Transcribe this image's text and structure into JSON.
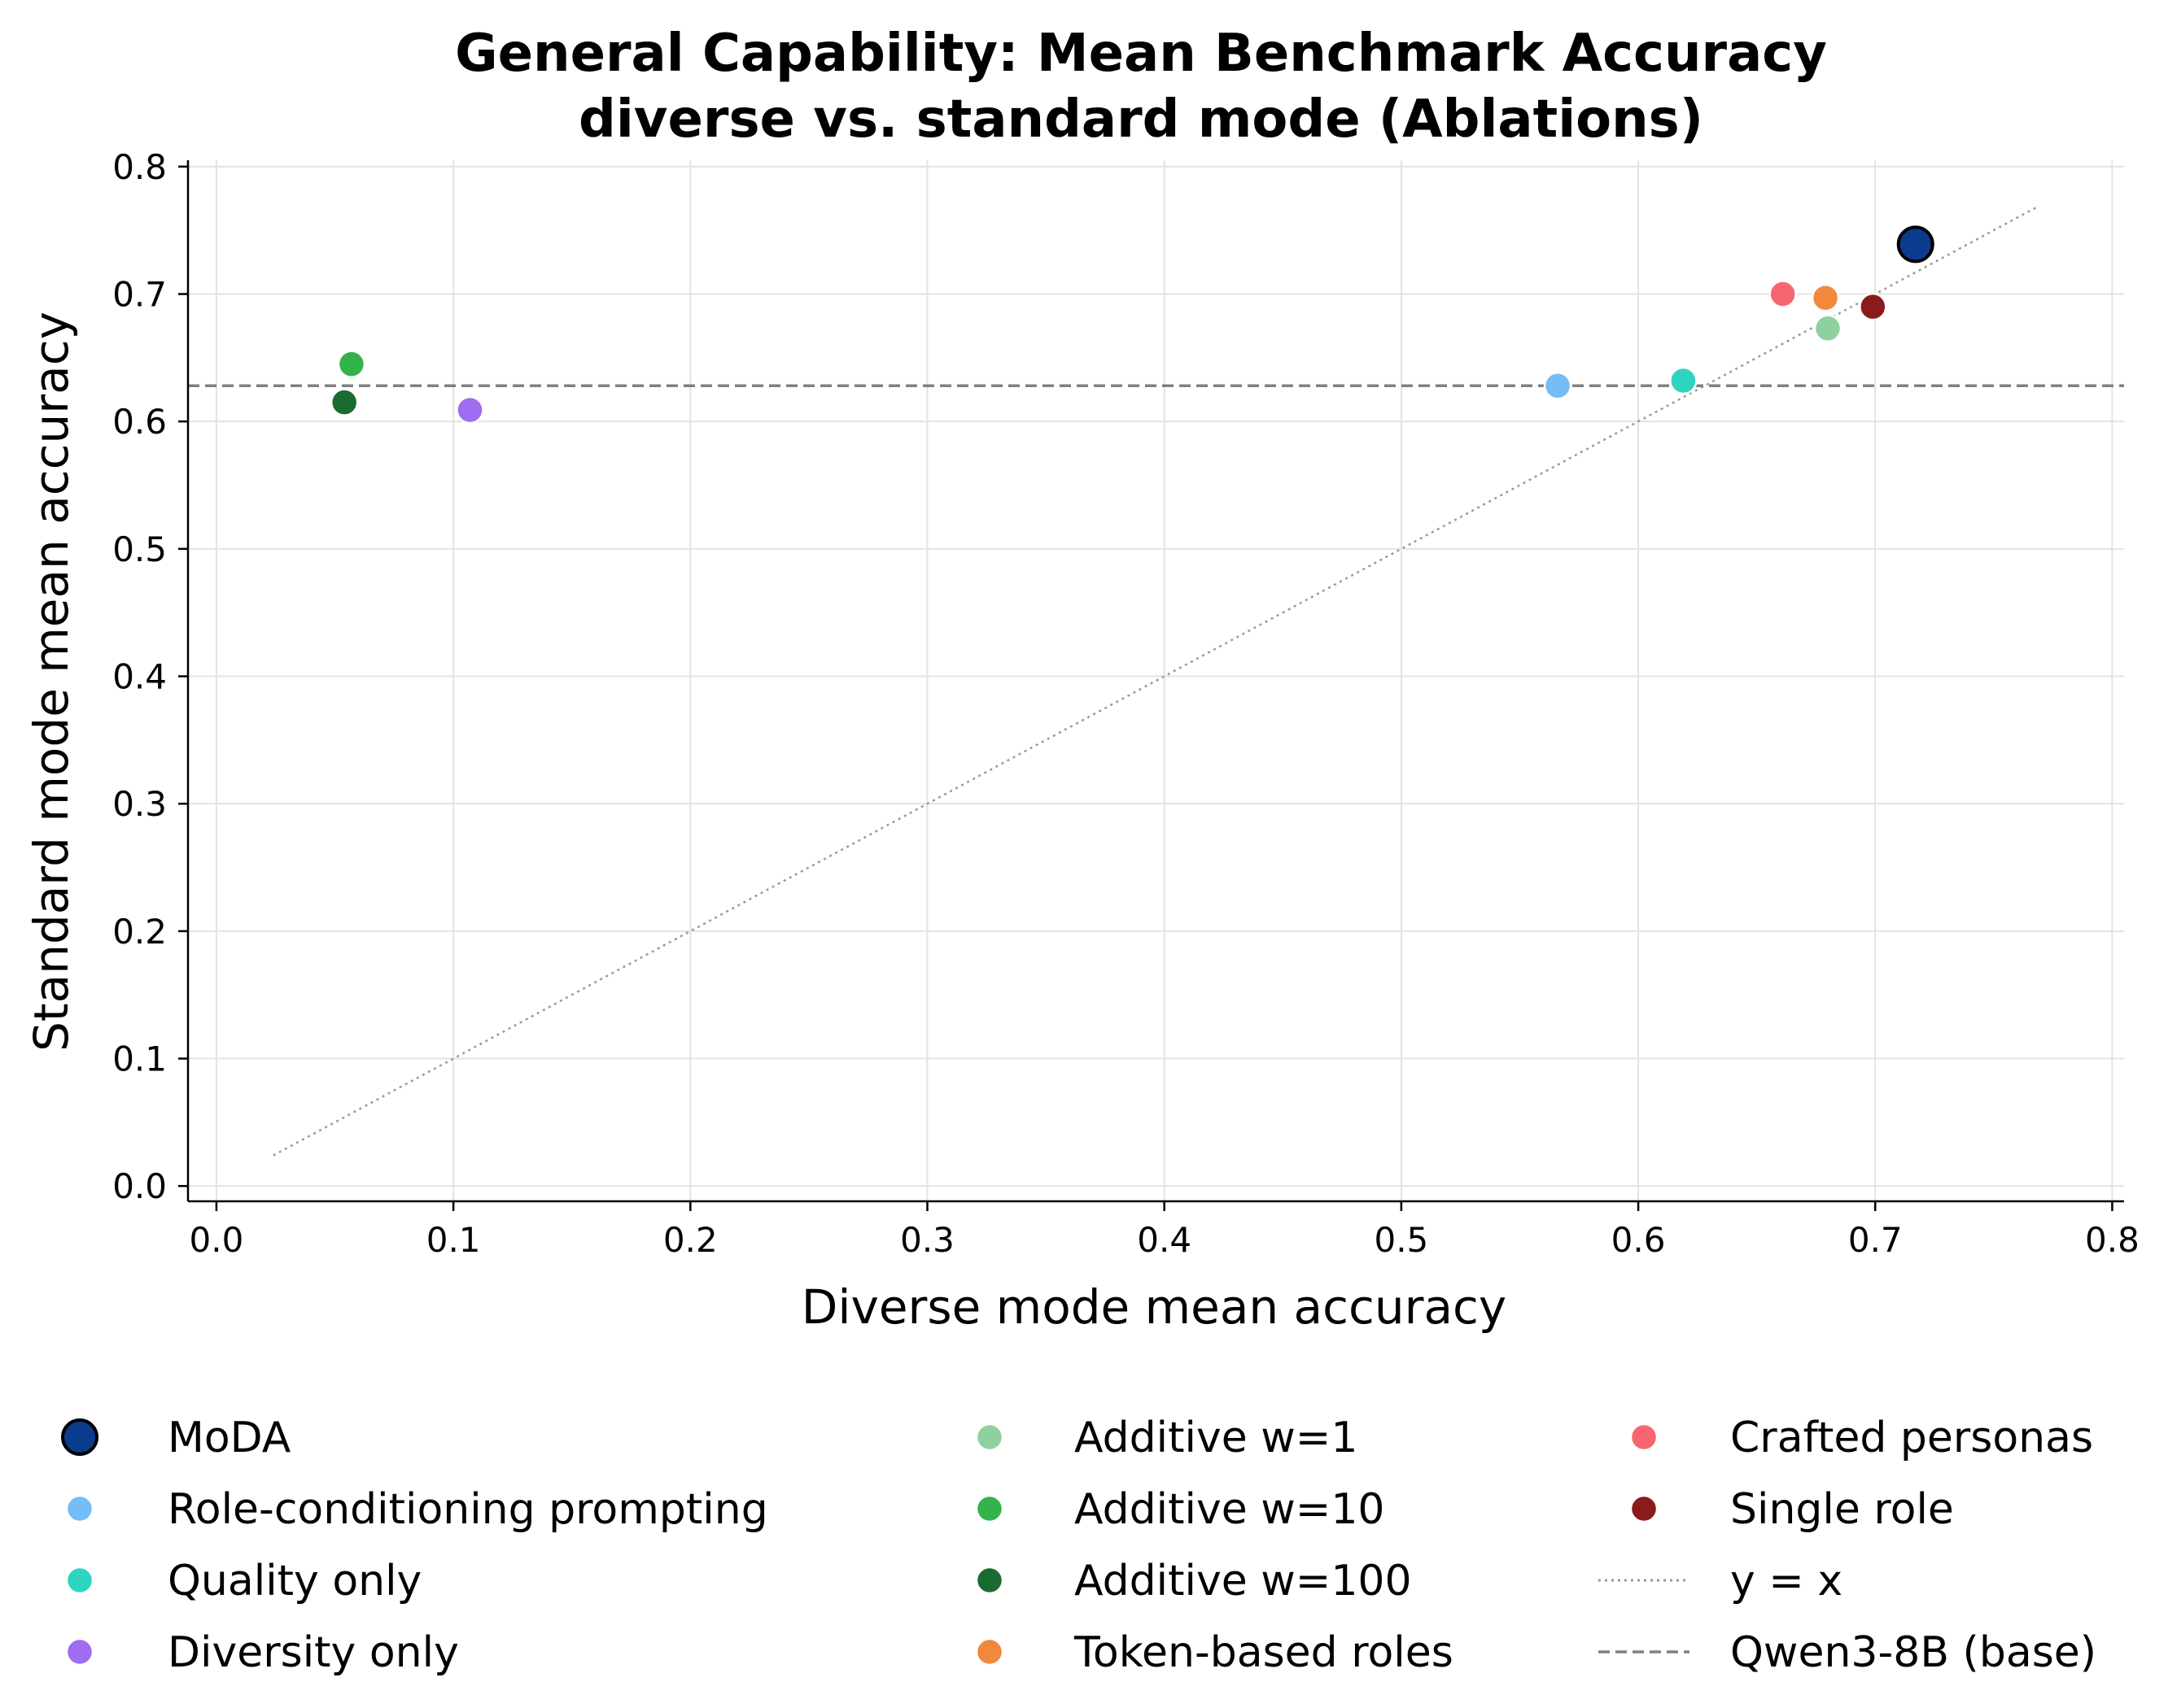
{
  "chart_data": {
    "type": "scatter",
    "title_line1": "General Capability: Mean Benchmark Accuracy",
    "title_line2": "diverse vs. standard mode (Ablations)",
    "xlabel": "Diverse mode mean accuracy",
    "ylabel": "Standard mode mean accuracy",
    "xlim": [
      -0.012,
      0.805
    ],
    "ylim": [
      -0.012,
      0.805
    ],
    "xticks": [
      "0.0",
      "0.1",
      "0.2",
      "0.3",
      "0.4",
      "0.5",
      "0.6",
      "0.7",
      "0.8"
    ],
    "yticks": [
      "0.0",
      "0.1",
      "0.2",
      "0.3",
      "0.4",
      "0.5",
      "0.6",
      "0.7",
      "0.8"
    ],
    "grid": true,
    "legend_position": "below-plot",
    "series": [
      {
        "name": "MoDA",
        "x": 0.717,
        "y": 0.739,
        "color": "#0b3b8c",
        "highlight": true
      },
      {
        "name": "Role-conditioning prompting",
        "x": 0.566,
        "y": 0.628,
        "color": "#74bdf6"
      },
      {
        "name": "Quality only",
        "x": 0.619,
        "y": 0.632,
        "color": "#2dd4bf"
      },
      {
        "name": "Diversity only",
        "x": 0.107,
        "y": 0.609,
        "color": "#a06cf0"
      },
      {
        "name": "Additive w=1",
        "x": 0.68,
        "y": 0.673,
        "color": "#8fd19e"
      },
      {
        "name": "Additive w=10",
        "x": 0.057,
        "y": 0.645,
        "color": "#34b34a"
      },
      {
        "name": "Additive w=100",
        "x": 0.054,
        "y": 0.615,
        "color": "#1a6b30"
      },
      {
        "name": "Token-based roles",
        "x": 0.679,
        "y": 0.697,
        "color": "#f0883e"
      },
      {
        "name": "Crafted personas",
        "x": 0.661,
        "y": 0.7,
        "color": "#f76670"
      },
      {
        "name": "Single role",
        "x": 0.699,
        "y": 0.69,
        "color": "#8b1a1a"
      }
    ],
    "reference_lines": [
      {
        "name": "y = x",
        "style": "dotted",
        "color": "#999999",
        "from": 0.024,
        "to": 0.769
      },
      {
        "name": "Qwen3-8B (base)",
        "style": "dashed",
        "color": "#808080",
        "y": 0.628
      }
    ]
  }
}
